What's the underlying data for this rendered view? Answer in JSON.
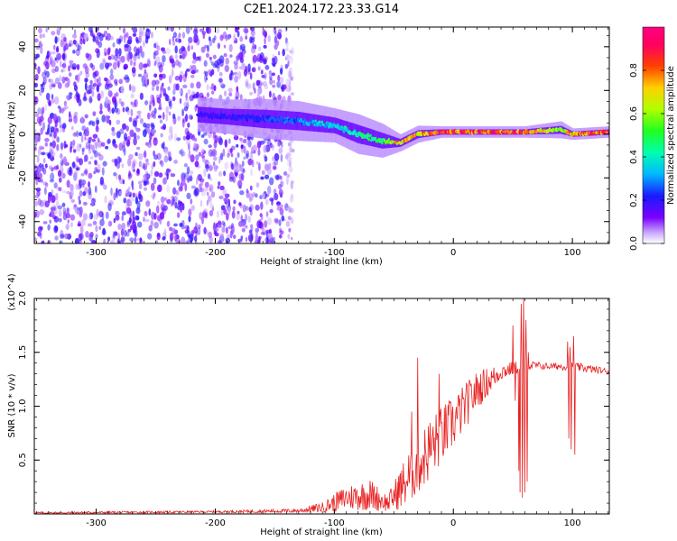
{
  "title": "C2E1.2024.172.23.33.G14",
  "colors": {
    "snr_line": "#e82020",
    "spectrogram_scatter": "#7a1cf0",
    "background": "#ffffff"
  },
  "chart_data": [
    {
      "type": "heatmap",
      "name": "spectrogram",
      "xlabel": "Height of straight line (km)",
      "ylabel": "Frequency (Hz)",
      "xlim": [
        -352,
        131
      ],
      "ylim": [
        -50,
        49
      ],
      "x_ticks": [
        -300,
        -200,
        -100,
        0,
        100
      ],
      "y_ticks": [
        -40,
        -20,
        0,
        20,
        40
      ],
      "x_tick_labels": [
        "-300",
        "-200",
        "-100",
        "0",
        "100"
      ],
      "y_tick_labels": [
        "-40",
        "-20",
        "0",
        "20",
        "40"
      ],
      "colorbar": {
        "label": "Normalized spectral amplitude",
        "range": [
          0.0,
          1.0
        ],
        "ticks": [
          0.0,
          0.2,
          0.4,
          0.6,
          0.8
        ],
        "tick_labels": [
          "0.0",
          "0.2",
          "0.4",
          "0.6",
          "0.8"
        ],
        "colormap": "rainbow"
      },
      "regions": [
        {
          "kind": "noise",
          "x_range": [
            -352,
            -140
          ],
          "y_range": [
            -50,
            49
          ],
          "amplitude": 0.2
        },
        {
          "kind": "noise",
          "x_range": [
            -140,
            -135
          ],
          "y_range": [
            -48,
            44
          ],
          "amplitude": 0.08
        }
      ],
      "ridge": [
        {
          "x": -215,
          "y": 9,
          "amp": 0.2,
          "width": 6
        },
        {
          "x": -190,
          "y": 8,
          "amp": 0.2,
          "width": 6
        },
        {
          "x": -160,
          "y": 7,
          "amp": 0.25,
          "width": 7
        },
        {
          "x": -130,
          "y": 6,
          "amp": 0.3,
          "width": 7
        },
        {
          "x": -100,
          "y": 4,
          "amp": 0.4,
          "width": 6
        },
        {
          "x": -80,
          "y": 0,
          "amp": 0.45,
          "width": 7
        },
        {
          "x": -60,
          "y": -3,
          "amp": 0.5,
          "width": 6
        },
        {
          "x": -45,
          "y": -4,
          "amp": 0.8,
          "width": 3
        },
        {
          "x": -30,
          "y": 0,
          "amp": 0.75,
          "width": 3
        },
        {
          "x": -10,
          "y": 1,
          "amp": 0.9,
          "width": 2
        },
        {
          "x": 20,
          "y": 1,
          "amp": 0.9,
          "width": 2
        },
        {
          "x": 60,
          "y": 1,
          "amp": 0.9,
          "width": 2
        },
        {
          "x": 90,
          "y": 2,
          "amp": 0.6,
          "width": 3
        },
        {
          "x": 100,
          "y": 0,
          "amp": 0.8,
          "width": 2
        },
        {
          "x": 131,
          "y": 1,
          "amp": 0.9,
          "width": 2
        }
      ]
    },
    {
      "type": "line",
      "name": "snr",
      "xlabel": "Height of straight line (km)",
      "ylabel": "SNR (10 * v/v)",
      "multiplier_label": "(x10^4)",
      "xlim": [
        -352,
        131
      ],
      "ylim": [
        0,
        2.0
      ],
      "x_ticks": [
        -300,
        -200,
        -100,
        0,
        100
      ],
      "y_ticks": [
        0.5,
        1.0,
        1.5,
        2.0
      ],
      "x_tick_labels": [
        "-300",
        "-200",
        "-100",
        "0",
        "100"
      ],
      "y_tick_labels": [
        "0.5",
        "1.0",
        "1.5",
        "2.0"
      ],
      "series": [
        {
          "envelope": [
            {
              "x": -352,
              "mean": 0.01,
              "noise": 0.01
            },
            {
              "x": -200,
              "mean": 0.02,
              "noise": 0.01
            },
            {
              "x": -130,
              "mean": 0.03,
              "noise": 0.02
            },
            {
              "x": -110,
              "mean": 0.06,
              "noise": 0.05
            },
            {
              "x": -90,
              "mean": 0.15,
              "noise": 0.12
            },
            {
              "x": -70,
              "mean": 0.18,
              "noise": 0.15
            },
            {
              "x": -55,
              "mean": 0.1,
              "noise": 0.08
            },
            {
              "x": -40,
              "mean": 0.3,
              "noise": 0.25
            },
            {
              "x": -20,
              "mean": 0.6,
              "noise": 0.3
            },
            {
              "x": 0,
              "mean": 0.85,
              "noise": 0.25
            },
            {
              "x": 20,
              "mean": 1.15,
              "noise": 0.18
            },
            {
              "x": 40,
              "mean": 1.32,
              "noise": 0.08
            },
            {
              "x": 60,
              "mean": 1.38,
              "noise": 0.05
            },
            {
              "x": 80,
              "mean": 1.37,
              "noise": 0.03
            },
            {
              "x": 100,
              "mean": 1.37,
              "noise": 0.04
            },
            {
              "x": 131,
              "mean": 1.32,
              "noise": 0.03
            }
          ],
          "spikes": [
            {
              "x": 50,
              "y": 1.75
            },
            {
              "x": 52,
              "y": 1.05
            },
            {
              "x": 55,
              "y": 0.4
            },
            {
              "x": 56,
              "y": 0.2
            },
            {
              "x": 57,
              "y": 1.95
            },
            {
              "x": 58,
              "y": 0.15
            },
            {
              "x": 59,
              "y": 2.0
            },
            {
              "x": 60,
              "y": 0.2
            },
            {
              "x": 61,
              "y": 1.8
            },
            {
              "x": 62,
              "y": 0.3
            },
            {
              "x": 63,
              "y": 1.5
            },
            {
              "x": 96,
              "y": 1.6
            },
            {
              "x": 97,
              "y": 0.7
            },
            {
              "x": 98,
              "y": 1.55
            },
            {
              "x": 99,
              "y": 0.6
            },
            {
              "x": 101,
              "y": 1.65
            },
            {
              "x": 102,
              "y": 0.55
            },
            {
              "x": -12,
              "y": 1.3
            },
            {
              "x": -30,
              "y": 1.45
            },
            {
              "x": -35,
              "y": 0.95
            }
          ]
        }
      ]
    }
  ]
}
